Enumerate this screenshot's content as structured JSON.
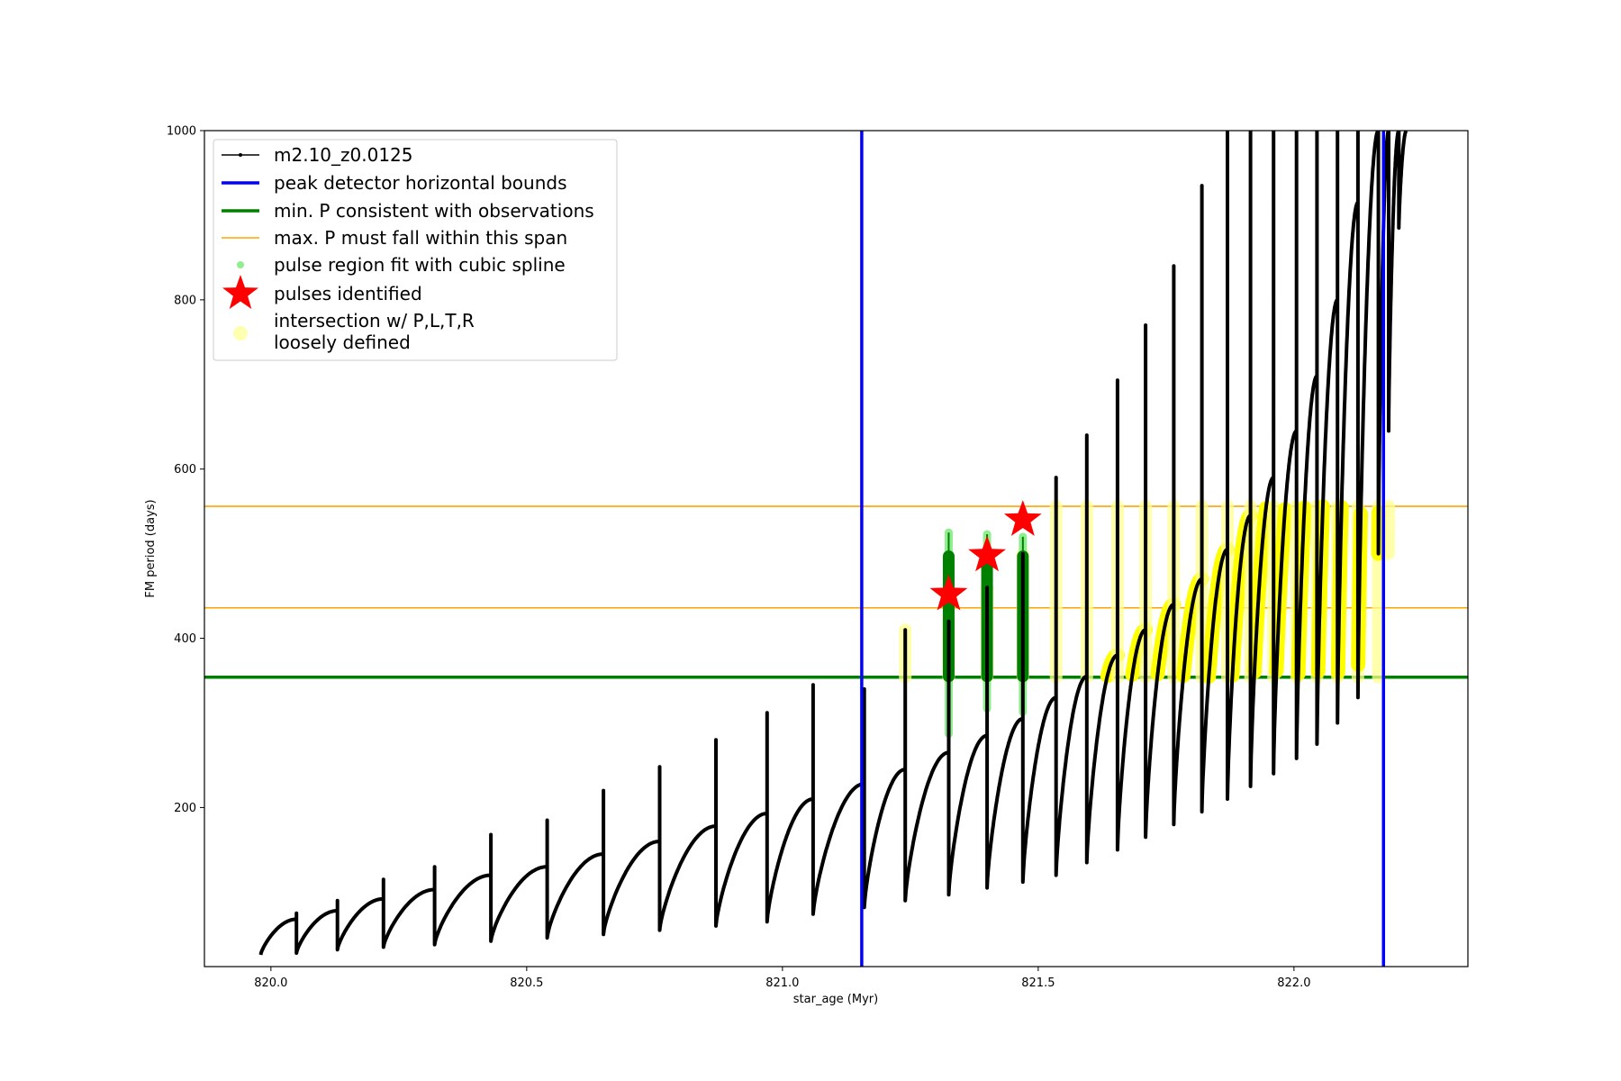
{
  "chart_data": {
    "type": "scatter",
    "xlabel": "star_age (Myr)",
    "ylabel": "FM period (days)",
    "xlim": [
      819.87,
      822.34
    ],
    "ylim": [
      12,
      1000
    ],
    "x_ticks": [
      820.0,
      820.5,
      821.0,
      821.5,
      822.0
    ],
    "x_tick_labels": [
      "820.0",
      "820.5",
      "821.0",
      "821.5",
      "822.0"
    ],
    "y_ticks": [
      200,
      400,
      600,
      800,
      1000
    ],
    "y_tick_labels": [
      "200",
      "400",
      "600",
      "800",
      "1000"
    ],
    "grid": false,
    "legend_position": "top-left",
    "legend": [
      {
        "key": "track",
        "label": "m2.10_z0.0125",
        "color": "#000000",
        "marker": "line-dot"
      },
      {
        "key": "bounds",
        "label": "peak detector horizontal bounds",
        "color": "#0000ff",
        "marker": "line"
      },
      {
        "key": "minp",
        "label": "min. P consistent with observations",
        "color": "#008000",
        "marker": "line"
      },
      {
        "key": "maxp",
        "label": "max. P must fall within this span",
        "color": "#ffa500",
        "marker": "thin-line"
      },
      {
        "key": "pulse_region",
        "label": "pulse region fit with cubic spline",
        "color": "#90ee90",
        "marker": "dot"
      },
      {
        "key": "pulses",
        "label": "pulses identified",
        "color": "#ff0000",
        "marker": "star"
      },
      {
        "key": "intersection",
        "label": [
          "intersection w/ P,L,T,R",
          "loosely defined"
        ],
        "color": "#ffffb0",
        "marker": "big-dot"
      }
    ],
    "vertical_bounds_x": [
      821.155,
      822.175
    ],
    "min_period_y": 354,
    "max_period_span": [
      436,
      556
    ],
    "pulses": [
      {
        "x": 821.325,
        "y": 452
      },
      {
        "x": 821.4,
        "y": 498
      },
      {
        "x": 821.47,
        "y": 540
      }
    ],
    "pulse_regions": [
      {
        "x": 821.325,
        "low": 287,
        "high": 525,
        "dense_low": 355,
        "dense_high": 497
      },
      {
        "x": 821.4,
        "low": 317,
        "high": 523,
        "dense_low": 355,
        "dense_high": 497
      },
      {
        "x": 821.47,
        "low": 313,
        "high": 520,
        "dense_low": 355,
        "dense_high": 497
      }
    ],
    "loop_period_growth": 1.07,
    "track_loops": [
      {
        "start": 819.98,
        "end": 820.05,
        "min": 26,
        "max": 68,
        "spike": 75
      },
      {
        "start": 820.05,
        "end": 820.13,
        "min": 28,
        "max": 78,
        "spike": 90
      },
      {
        "start": 820.13,
        "end": 820.22,
        "min": 32,
        "max": 92,
        "spike": 115
      },
      {
        "start": 820.22,
        "end": 820.32,
        "min": 35,
        "max": 103,
        "spike": 130
      },
      {
        "start": 820.32,
        "end": 820.43,
        "min": 38,
        "max": 120,
        "spike": 168
      },
      {
        "start": 820.43,
        "end": 820.54,
        "min": 42,
        "max": 130,
        "spike": 185
      },
      {
        "start": 820.54,
        "end": 820.65,
        "min": 46,
        "max": 145,
        "spike": 220
      },
      {
        "start": 820.65,
        "end": 820.76,
        "min": 50,
        "max": 160,
        "spike": 248
      },
      {
        "start": 820.76,
        "end": 820.87,
        "min": 55,
        "max": 178,
        "spike": 280
      },
      {
        "start": 820.87,
        "end": 820.97,
        "min": 60,
        "max": 193,
        "spike": 312
      },
      {
        "start": 820.97,
        "end": 821.06,
        "min": 65,
        "max": 210,
        "spike": 345
      },
      {
        "start": 821.06,
        "end": 821.16,
        "min": 74,
        "max": 228,
        "spike": 340
      },
      {
        "start": 821.16,
        "end": 821.24,
        "min": 82,
        "max": 245,
        "spike": 410
      },
      {
        "start": 821.24,
        "end": 821.325,
        "min": 90,
        "max": 265,
        "spike": 420
      },
      {
        "start": 821.325,
        "end": 821.4,
        "min": 97,
        "max": 285,
        "spike": 460
      },
      {
        "start": 821.4,
        "end": 821.47,
        "min": 105,
        "max": 305,
        "spike": 500
      },
      {
        "start": 821.47,
        "end": 821.535,
        "min": 112,
        "max": 330,
        "spike": 590
      },
      {
        "start": 821.535,
        "end": 821.595,
        "min": 120,
        "max": 355,
        "spike": 640
      },
      {
        "start": 821.595,
        "end": 821.655,
        "min": 135,
        "max": 380,
        "spike": 705
      },
      {
        "start": 821.655,
        "end": 821.71,
        "min": 150,
        "max": 410,
        "spike": 770
      },
      {
        "start": 821.71,
        "end": 821.765,
        "min": 165,
        "max": 440,
        "spike": 840
      },
      {
        "start": 821.765,
        "end": 821.82,
        "min": 180,
        "max": 470,
        "spike": 935
      },
      {
        "start": 821.82,
        "end": 821.87,
        "min": 195,
        "max": 505,
        "spike": 1000
      },
      {
        "start": 821.87,
        "end": 821.915,
        "min": 210,
        "max": 545,
        "spike": 1000
      },
      {
        "start": 821.915,
        "end": 821.96,
        "min": 225,
        "max": 590,
        "spike": 1000
      },
      {
        "start": 821.96,
        "end": 822.005,
        "min": 240,
        "max": 645,
        "spike": 1000
      },
      {
        "start": 822.005,
        "end": 822.045,
        "min": 258,
        "max": 710,
        "spike": 1000
      },
      {
        "start": 822.045,
        "end": 822.085,
        "min": 275,
        "max": 800,
        "spike": 1000
      },
      {
        "start": 822.085,
        "end": 822.125,
        "min": 300,
        "max": 915,
        "spike": 1000
      },
      {
        "start": 822.125,
        "end": 822.165,
        "min": 330,
        "max": 1000,
        "spike": 1000
      },
      {
        "start": 822.165,
        "end": 822.185,
        "min": 500,
        "max": 1000,
        "spike": 1000
      },
      {
        "start": 822.185,
        "end": 822.205,
        "min": 645,
        "max": 1000,
        "spike": 1000
      },
      {
        "start": 822.205,
        "end": 822.22,
        "min": 885,
        "max": 1000,
        "spike": 1000
      }
    ]
  }
}
